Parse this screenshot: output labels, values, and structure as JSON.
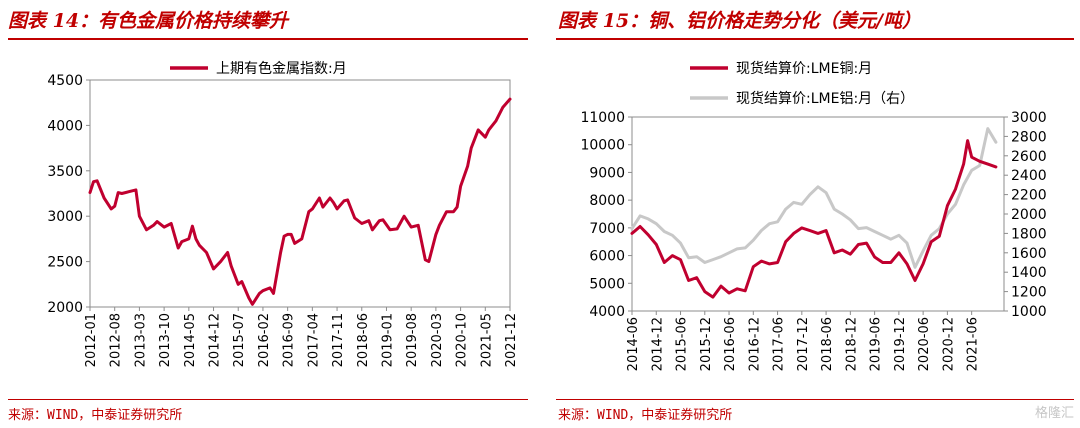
{
  "left_panel": {
    "title": "图表 14：有色金属价格持续攀升",
    "source": "来源：WIND，中泰证券研究所"
  },
  "right_panel": {
    "title": "图表 15：铜、铝价格走势分化（美元/吨）",
    "source": "来源：WIND，中泰证券研究所"
  },
  "watermark": "格隆汇",
  "colors": {
    "accent": "#c00000",
    "series_red": "#c0002f",
    "series_gray": "#c8c8c8"
  },
  "chart_data": [
    {
      "type": "line",
      "title": "",
      "xlabel": "",
      "ylabel": "",
      "ylim": [
        2000,
        4500
      ],
      "yticks": [
        "2000",
        "2500",
        "3000",
        "3500",
        "4000",
        "4500"
      ],
      "xticks": [
        "2012-01",
        "2012-08",
        "2013-03",
        "2013-10",
        "2014-05",
        "2014-12",
        "2015-07",
        "2016-02",
        "2016-09",
        "2017-04",
        "2017-11",
        "2018-06",
        "2019-01",
        "2019-08",
        "2020-03",
        "2020-10",
        "2021-05",
        "2021-12"
      ],
      "legend_position": "top",
      "series": [
        {
          "name": "上期有色金属指数:月",
          "x": [
            "2012-01",
            "2012-02",
            "2012-03",
            "2012-05",
            "2012-07",
            "2012-08",
            "2012-09",
            "2012-10",
            "2012-12",
            "2013-02",
            "2013-03",
            "2013-05",
            "2013-07",
            "2013-08",
            "2013-10",
            "2013-12",
            "2014-02",
            "2014-03",
            "2014-05",
            "2014-06",
            "2014-07",
            "2014-08",
            "2014-10",
            "2014-12",
            "2015-02",
            "2015-04",
            "2015-05",
            "2015-07",
            "2015-08",
            "2015-10",
            "2015-11",
            "2016-01",
            "2016-02",
            "2016-04",
            "2016-05",
            "2016-07",
            "2016-08",
            "2016-09",
            "2016-10",
            "2016-11",
            "2017-01",
            "2017-03",
            "2017-04",
            "2017-06",
            "2017-07",
            "2017-09",
            "2017-10",
            "2017-11",
            "2018-01",
            "2018-02",
            "2018-04",
            "2018-06",
            "2018-08",
            "2018-09",
            "2018-11",
            "2018-12",
            "2019-02",
            "2019-04",
            "2019-06",
            "2019-08",
            "2019-10",
            "2019-12",
            "2020-01",
            "2020-03",
            "2020-04",
            "2020-06",
            "2020-08",
            "2020-09",
            "2020-10",
            "2020-12",
            "2021-01",
            "2021-03",
            "2021-05",
            "2021-06",
            "2021-08",
            "2021-10",
            "2021-12"
          ],
          "values": [
            3260,
            3380,
            3390,
            3200,
            3080,
            3110,
            3260,
            3250,
            3270,
            3290,
            3000,
            2850,
            2900,
            2940,
            2880,
            2920,
            2650,
            2720,
            2750,
            2890,
            2750,
            2680,
            2600,
            2420,
            2500,
            2600,
            2450,
            2250,
            2280,
            2100,
            2030,
            2150,
            2180,
            2210,
            2150,
            2600,
            2780,
            2800,
            2800,
            2700,
            2750,
            3050,
            3080,
            3200,
            3100,
            3200,
            3150,
            3080,
            3170,
            3180,
            2980,
            2920,
            2950,
            2850,
            2950,
            2960,
            2850,
            2860,
            3000,
            2880,
            2900,
            2520,
            2500,
            2800,
            2900,
            3050,
            3050,
            3100,
            3330,
            3550,
            3750,
            3950,
            3870,
            3950,
            4050,
            4200,
            4290
          ]
        }
      ]
    },
    {
      "type": "line",
      "title": "",
      "xlabel": "",
      "ylabel": "",
      "ylim": [
        4000,
        11000
      ],
      "y2lim": [
        1000,
        3000
      ],
      "yticks": [
        "4000",
        "5000",
        "6000",
        "7000",
        "8000",
        "9000",
        "10000",
        "11000"
      ],
      "y2ticks": [
        "1000",
        "1200",
        "1400",
        "1600",
        "1800",
        "2000",
        "2200",
        "2400",
        "2600",
        "2800",
        "3000"
      ],
      "xticks": [
        "2014-06",
        "2014-12",
        "2015-06",
        "2015-12",
        "2016-06",
        "2016-12",
        "2017-06",
        "2017-12",
        "2018-06",
        "2018-12",
        "2019-06",
        "2019-12",
        "2020-06",
        "2020-12",
        "2021-06"
      ],
      "legend_position": "top-left",
      "series": [
        {
          "name": "现货结算价:LME铜:月",
          "axis": "left",
          "x": [
            "2014-06",
            "2014-08",
            "2014-10",
            "2014-12",
            "2015-02",
            "2015-04",
            "2015-06",
            "2015-08",
            "2015-10",
            "2015-12",
            "2016-02",
            "2016-04",
            "2016-06",
            "2016-08",
            "2016-10",
            "2016-12",
            "2017-02",
            "2017-04",
            "2017-06",
            "2017-08",
            "2017-10",
            "2017-12",
            "2018-02",
            "2018-04",
            "2018-06",
            "2018-08",
            "2018-10",
            "2018-12",
            "2019-02",
            "2019-04",
            "2019-06",
            "2019-08",
            "2019-10",
            "2019-12",
            "2020-02",
            "2020-04",
            "2020-06",
            "2020-08",
            "2020-10",
            "2020-12",
            "2021-02",
            "2021-04",
            "2021-05",
            "2021-06",
            "2021-08",
            "2021-10",
            "2021-12"
          ],
          "values": [
            6800,
            7050,
            6750,
            6400,
            5750,
            6000,
            5850,
            5100,
            5200,
            4700,
            4500,
            4900,
            4650,
            4800,
            4730,
            5600,
            5800,
            5700,
            5750,
            6500,
            6800,
            7000,
            6900,
            6800,
            6900,
            6100,
            6200,
            6050,
            6400,
            6450,
            5950,
            5750,
            5750,
            6100,
            5700,
            5100,
            5700,
            6500,
            6700,
            7800,
            8400,
            9300,
            10150,
            9550,
            9400,
            9300,
            9200
          ]
        },
        {
          "name": "现货结算价:LME铝:月（右）",
          "axis": "right",
          "x": [
            "2014-06",
            "2014-08",
            "2014-10",
            "2014-12",
            "2015-02",
            "2015-04",
            "2015-06",
            "2015-08",
            "2015-10",
            "2015-12",
            "2016-02",
            "2016-04",
            "2016-06",
            "2016-08",
            "2016-10",
            "2016-12",
            "2017-02",
            "2017-04",
            "2017-06",
            "2017-08",
            "2017-10",
            "2017-12",
            "2018-02",
            "2018-04",
            "2018-06",
            "2018-08",
            "2018-10",
            "2018-12",
            "2019-02",
            "2019-04",
            "2019-06",
            "2019-08",
            "2019-10",
            "2019-12",
            "2020-02",
            "2020-04",
            "2020-06",
            "2020-08",
            "2020-10",
            "2020-12",
            "2021-02",
            "2021-04",
            "2021-06",
            "2021-08",
            "2021-10",
            "2021-12"
          ],
          "values": [
            1850,
            1980,
            1950,
            1900,
            1820,
            1780,
            1700,
            1550,
            1560,
            1500,
            1530,
            1560,
            1600,
            1640,
            1650,
            1730,
            1830,
            1900,
            1920,
            2050,
            2120,
            2100,
            2200,
            2280,
            2220,
            2050,
            2000,
            1940,
            1850,
            1860,
            1820,
            1780,
            1740,
            1780,
            1700,
            1450,
            1620,
            1780,
            1850,
            2000,
            2100,
            2300,
            2450,
            2500,
            2880,
            2740
          ]
        }
      ]
    }
  ]
}
